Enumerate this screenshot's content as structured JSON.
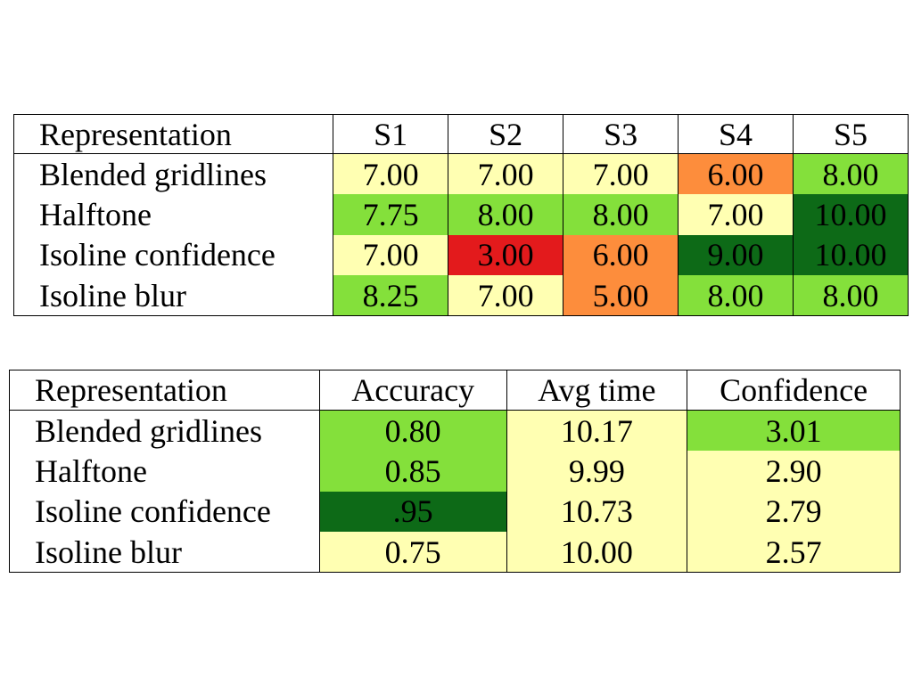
{
  "chart_data": [
    {
      "type": "table",
      "columns": [
        "Representation",
        "S1",
        "S2",
        "S3",
        "S4",
        "S5"
      ],
      "rows": [
        {
          "label": "Blended gridlines",
          "values": [
            "7.00",
            "7.00",
            "7.00",
            "6.00",
            "8.00"
          ],
          "colors": [
            "#ffffb2",
            "#ffffb2",
            "#ffffb2",
            "#fd8d3c",
            "#84e03b"
          ]
        },
        {
          "label": "Halftone",
          "values": [
            "7.75",
            "8.00",
            "8.00",
            "7.00",
            "10.00"
          ],
          "colors": [
            "#84e03b",
            "#84e03b",
            "#84e03b",
            "#ffffb2",
            "#0d6a17"
          ]
        },
        {
          "label": "Isoline confidence",
          "values": [
            "7.00",
            "3.00",
            "6.00",
            "9.00",
            "10.00"
          ],
          "colors": [
            "#ffffb2",
            "#e31a1c",
            "#fd8d3c",
            "#0d6a17",
            "#0d6a17"
          ]
        },
        {
          "label": "Isoline blur",
          "values": [
            "8.25",
            "7.00",
            "5.00",
            "8.00",
            "8.00"
          ],
          "colors": [
            "#84e03b",
            "#ffffb2",
            "#fd8d3c",
            "#84e03b",
            "#84e03b"
          ]
        }
      ]
    },
    {
      "type": "table",
      "columns": [
        "Representation",
        "Accuracy",
        "Avg time",
        "Confidence"
      ],
      "rows": [
        {
          "label": "Blended gridlines",
          "values": [
            "0.80",
            "10.17",
            "3.01"
          ],
          "colors": [
            "#84e03b",
            "#ffffb2",
            "#84e03b"
          ]
        },
        {
          "label": "Halftone",
          "values": [
            "0.85",
            "9.99",
            "2.90"
          ],
          "colors": [
            "#84e03b",
            "#ffffb2",
            "#ffffb2"
          ]
        },
        {
          "label": "Isoline confidence",
          "values": [
            ".95",
            "10.73",
            "2.79"
          ],
          "colors": [
            "#0d6a17",
            "#ffffb2",
            "#ffffb2"
          ]
        },
        {
          "label": "Isoline blur",
          "values": [
            "0.75",
            "10.00",
            "2.57"
          ],
          "colors": [
            "#ffffb2",
            "#ffffb2",
            "#ffffb2"
          ]
        }
      ]
    }
  ]
}
